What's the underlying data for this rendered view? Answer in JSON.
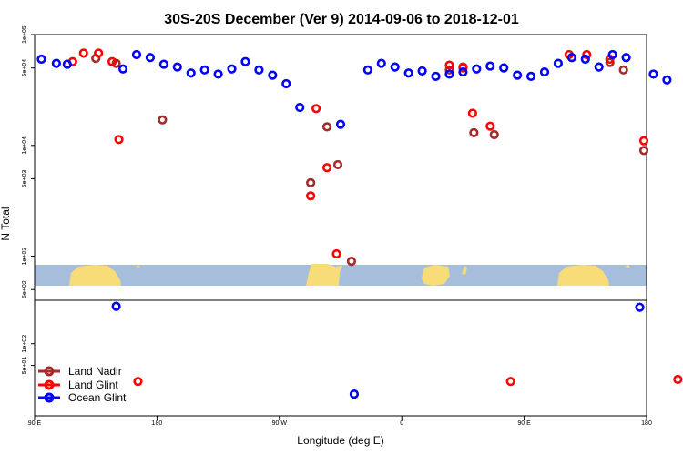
{
  "chart_data": {
    "type": "scatter",
    "title": "30S-20S December (Ver 9)   2014-09-06 to 2018-12-01",
    "xlabel": "Longitude (deg E)",
    "ylabel": "N Total",
    "x_scale": "longitude_wrapped_from_90E",
    "x_start_lon": 90,
    "xlim_unwrapped": [
      0,
      450
    ],
    "x_ticks": [
      {
        "x": 0,
        "label": "90 E"
      },
      {
        "x": 90,
        "label": "180"
      },
      {
        "x": 180,
        "label": "90 W"
      },
      {
        "x": 270,
        "label": "0"
      },
      {
        "x": 360,
        "label": "90 E"
      },
      {
        "x": 450,
        "label": "180"
      }
    ],
    "y_scale": "log",
    "ylim_upper": [
      400,
      100000
    ],
    "ylim_lower": [
      10,
      400
    ],
    "y_ticks_upper": [
      {
        "y": 100000,
        "label": "1e+05"
      },
      {
        "y": 50000,
        "label": "5e+04"
      },
      {
        "y": 10000,
        "label": "1e+04"
      },
      {
        "y": 5000,
        "label": "5e+03"
      },
      {
        "y": 1000,
        "label": "1e+03"
      },
      {
        "y": 500,
        "label": "5e+02"
      }
    ],
    "y_ticks_lower": [
      {
        "y": 100,
        "label": "1e+02"
      },
      {
        "y": 50,
        "label": "5e+01"
      }
    ],
    "map_strip_colors": {
      "ocean": "#a6bddb",
      "land": "#f8dc78"
    },
    "series": [
      {
        "name": "Land Nadir",
        "color": "#a52a2a",
        "points": [
          [
            45,
            61000
          ],
          [
            60,
            55000
          ],
          [
            94,
            17000
          ],
          [
            203,
            4600
          ],
          [
            215,
            14700
          ],
          [
            223,
            6700
          ],
          [
            233,
            900
          ],
          [
            305,
            48000
          ],
          [
            315,
            50000
          ],
          [
            323,
            13000
          ],
          [
            338,
            12500
          ],
          [
            423,
            56000
          ],
          [
            433,
            48000
          ],
          [
            448,
            9000
          ]
        ]
      },
      {
        "name": "Land Glint",
        "color": "#ff0000",
        "points": [
          [
            28,
            57000
          ],
          [
            36,
            68000
          ],
          [
            47,
            68000
          ],
          [
            57,
            57000
          ],
          [
            62,
            11300
          ],
          [
            76,
            30
          ],
          [
            203,
            3500
          ],
          [
            207,
            21500
          ],
          [
            215,
            6300
          ],
          [
            222,
            1050
          ],
          [
            305,
            53000
          ],
          [
            315,
            51000
          ],
          [
            322,
            19500
          ],
          [
            335,
            14900
          ],
          [
            350,
            30
          ],
          [
            393,
            66000
          ],
          [
            406,
            66000
          ],
          [
            423,
            60000
          ],
          [
            448,
            11000
          ],
          [
            473,
            32
          ]
        ]
      },
      {
        "name": "Ocean Glint",
        "color": "#0000ff",
        "points": [
          [
            5,
            60000
          ],
          [
            16,
            55000
          ],
          [
            24,
            54000
          ],
          [
            60,
            330
          ],
          [
            65,
            49000
          ],
          [
            75,
            66000
          ],
          [
            85,
            62000
          ],
          [
            95,
            54000
          ],
          [
            105,
            51000
          ],
          [
            115,
            45000
          ],
          [
            125,
            48000
          ],
          [
            135,
            44000
          ],
          [
            145,
            49000
          ],
          [
            155,
            57000
          ],
          [
            165,
            48000
          ],
          [
            175,
            43000
          ],
          [
            185,
            36000
          ],
          [
            195,
            22000
          ],
          [
            225,
            15500
          ],
          [
            235,
            20
          ],
          [
            245,
            48000
          ],
          [
            255,
            55000
          ],
          [
            265,
            51000
          ],
          [
            275,
            45000
          ],
          [
            285,
            47000
          ],
          [
            295,
            42000
          ],
          [
            305,
            44000
          ],
          [
            315,
            46000
          ],
          [
            325,
            49000
          ],
          [
            335,
            52000
          ],
          [
            345,
            50000
          ],
          [
            355,
            43000
          ],
          [
            365,
            42000
          ],
          [
            375,
            46000
          ],
          [
            385,
            55000
          ],
          [
            395,
            62000
          ],
          [
            405,
            60000
          ],
          [
            415,
            51000
          ],
          [
            425,
            66000
          ],
          [
            435,
            62000
          ],
          [
            445,
            320
          ],
          [
            455,
            44000
          ],
          [
            465,
            39000
          ]
        ]
      }
    ],
    "legend": {
      "location": "bottom-left",
      "entries": [
        "Land Nadir",
        "Land Glint",
        "Ocean Glint"
      ]
    }
  }
}
